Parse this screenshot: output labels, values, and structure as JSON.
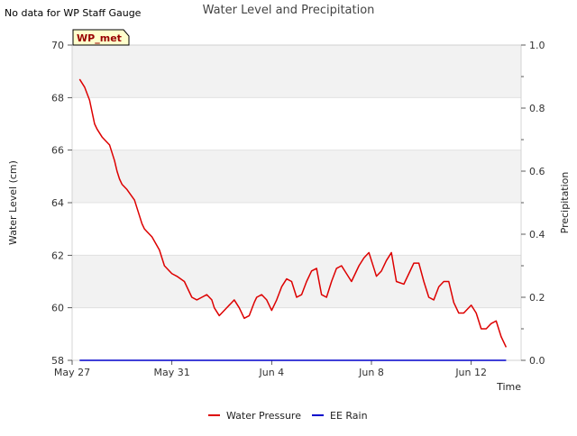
{
  "header": {
    "nodata_note": "No data for WP Staff Gauge",
    "title": "Water Level and Precipitation"
  },
  "badge": {
    "label": "WP_met"
  },
  "chart_data": {
    "type": "line",
    "title": "Water Level and Precipitation",
    "xlabel": "Time",
    "ylabel": "Water Level (cm)",
    "y2label": "Precipitation",
    "xlim": [
      0,
      18
    ],
    "ylim": [
      58,
      70
    ],
    "y2lim": [
      0,
      1.0
    ],
    "grid": true,
    "x_ticks": [
      {
        "x": 0,
        "label": "May 27"
      },
      {
        "x": 4,
        "label": "May 31"
      },
      {
        "x": 8,
        "label": "Jun 4"
      },
      {
        "x": 12,
        "label": "Jun 8"
      },
      {
        "x": 16,
        "label": "Jun 12"
      }
    ],
    "y_ticks": [
      58,
      60,
      62,
      64,
      66,
      68,
      70
    ],
    "y2_ticks": [
      "0.0",
      "0.2",
      "0.4",
      "0.6",
      "0.8",
      "1.0"
    ],
    "y2_ticks_values": [
      0,
      0.2,
      0.4,
      0.6,
      0.8,
      1.0
    ],
    "legend_position": "bottom-center",
    "series": [
      {
        "name": "Water Pressure",
        "color": "#dd0000",
        "axis": "left",
        "x": [
          0.3,
          0.5,
          0.7,
          0.9,
          1.0,
          1.2,
          1.5,
          1.7,
          1.8,
          1.9,
          2.0,
          2.2,
          2.5,
          2.7,
          2.8,
          2.9,
          3.0,
          3.2,
          3.5,
          3.7,
          3.9,
          4.0,
          4.2,
          4.5,
          4.8,
          5.0,
          5.2,
          5.4,
          5.6,
          5.7,
          5.9,
          6.2,
          6.4,
          6.5,
          6.7,
          6.9,
          7.1,
          7.3,
          7.4,
          7.6,
          7.8,
          8.0,
          8.2,
          8.4,
          8.6,
          8.8,
          9.0,
          9.2,
          9.4,
          9.6,
          9.8,
          10.0,
          10.2,
          10.4,
          10.6,
          10.8,
          11.0,
          11.2,
          11.5,
          11.7,
          11.9,
          12.0,
          12.2,
          12.4,
          12.6,
          12.8,
          13.0,
          13.3,
          13.5,
          13.7,
          13.9,
          14.1,
          14.3,
          14.5,
          14.7,
          14.9,
          15.1,
          15.3,
          15.5,
          15.7,
          16.0,
          16.2,
          16.4,
          16.6,
          16.8,
          17.0,
          17.2,
          17.4
        ],
        "y": [
          68.7,
          68.4,
          67.9,
          67.0,
          66.8,
          66.5,
          66.2,
          65.6,
          65.2,
          64.9,
          64.7,
          64.5,
          64.1,
          63.5,
          63.2,
          63.0,
          62.9,
          62.7,
          62.2,
          61.6,
          61.4,
          61.3,
          61.2,
          61.0,
          60.4,
          60.3,
          60.4,
          60.5,
          60.3,
          60.0,
          59.7,
          60.0,
          60.2,
          60.3,
          60.0,
          59.6,
          59.7,
          60.2,
          60.4,
          60.5,
          60.3,
          59.9,
          60.3,
          60.8,
          61.1,
          61.0,
          60.4,
          60.5,
          61.0,
          61.4,
          61.5,
          60.5,
          60.4,
          61.0,
          61.5,
          61.6,
          61.3,
          61.0,
          61.6,
          61.9,
          62.1,
          61.8,
          61.2,
          61.4,
          61.8,
          62.1,
          61.0,
          60.9,
          61.3,
          61.7,
          61.7,
          61.0,
          60.4,
          60.3,
          60.8,
          61.0,
          61.0,
          60.2,
          59.8,
          59.8,
          60.1,
          59.8,
          59.2,
          59.2,
          59.4,
          59.5,
          58.9,
          58.5
        ]
      },
      {
        "name": "EE Rain",
        "color": "#0000cc",
        "axis": "right",
        "x": [
          0.3,
          17.4
        ],
        "y": [
          0,
          0
        ]
      }
    ]
  }
}
